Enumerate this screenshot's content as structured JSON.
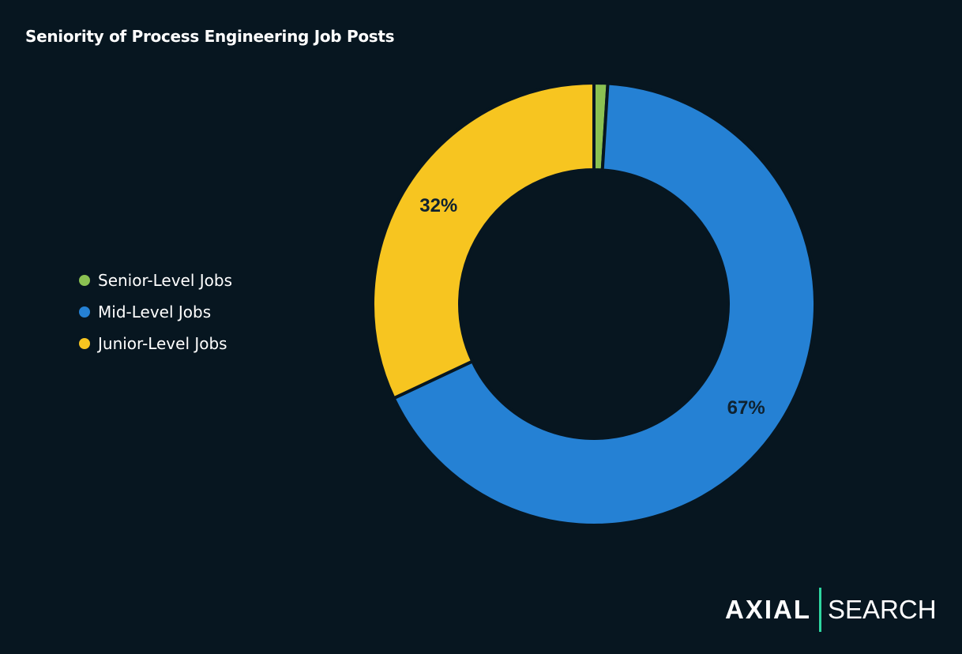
{
  "chart_data": {
    "type": "pie",
    "subtype": "donut",
    "title": "Seniority of Process Engineering Job Posts",
    "categories": [
      "Senior-Level Jobs",
      "Mid-Level Jobs",
      "Junior-Level Jobs"
    ],
    "values": [
      1,
      67,
      32
    ],
    "data_labels": [
      "",
      "67%",
      "32%"
    ],
    "colors": [
      "#8bc152",
      "#2581d4",
      "#f7c520"
    ],
    "legend_position": "left"
  },
  "logo": {
    "brand": "AXIAL",
    "product": "SEARCH"
  }
}
